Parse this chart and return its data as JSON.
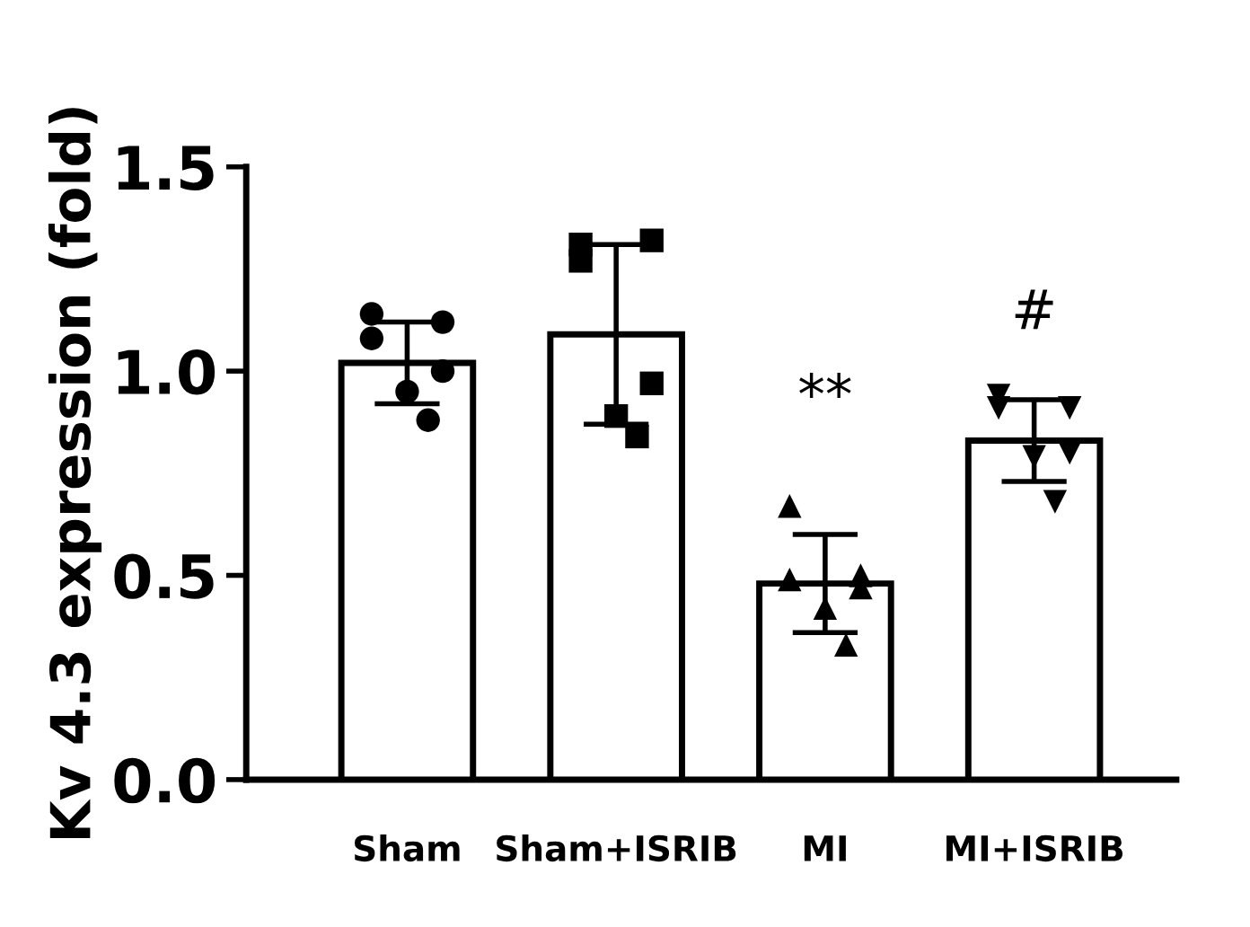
{
  "chart_data": {
    "type": "bar",
    "ylabel": "Kv 4.3 expression (fold)",
    "categories": [
      "Sham",
      "Sham+ISRIB",
      "MI",
      "MI+ISRIB"
    ],
    "series": [
      {
        "color": "#ffffff",
        "values": [
          1.02,
          1.09,
          0.48,
          0.83
        ],
        "errors": [
          0.1,
          0.22,
          0.12,
          0.1
        ]
      },
      {
        "type": "scatter",
        "color": "#000000",
        "marker": "circle",
        "x": [
          "Sham",
          "Sham",
          "Sham",
          "Sham",
          "Sham",
          "Sham"
        ],
        "values": [
          1.14,
          1.12,
          1.08,
          1.0,
          0.95,
          0.88
        ]
      },
      {
        "type": "scatter",
        "color": "#000000",
        "marker": "square",
        "x": [
          "Sham+ISRIB",
          "Sham+ISRIB",
          "Sham+ISRIB",
          "Sham+ISRIB",
          "Sham+ISRIB",
          "Sham+ISRIB"
        ],
        "values": [
          1.31,
          1.32,
          1.27,
          0.97,
          0.89,
          0.84
        ]
      },
      {
        "type": "scatter",
        "color": "#000000",
        "marker": "triangle",
        "x": [
          "MI",
          "MI",
          "MI",
          "MI",
          "MI",
          "MI"
        ],
        "values": [
          0.67,
          0.5,
          0.49,
          0.47,
          0.42,
          0.33
        ]
      },
      {
        "type": "scatter",
        "color": "#000000",
        "marker": "triangle_down",
        "x": [
          "MI+ISRIB",
          "MI+ISRIB",
          "MI+ISRIB",
          "MI+ISRIB",
          "MI+ISRIB",
          "MI+ISRIB"
        ],
        "values": [
          0.94,
          0.91,
          0.91,
          0.8,
          0.79,
          0.68
        ]
      }
    ],
    "annotations": [
      "**",
      "#"
    ],
    "ylim": [
      0,
      1.5
    ],
    "yticks": [
      {
        "value": 0,
        "label": "0.0"
      },
      {
        "value": 0.5,
        "label": "0.5"
      },
      {
        "value": 1,
        "label": "1.0"
      },
      {
        "value": 1.5,
        "label": "1.5"
      }
    ],
    "grid": false,
    "legend": false
  }
}
